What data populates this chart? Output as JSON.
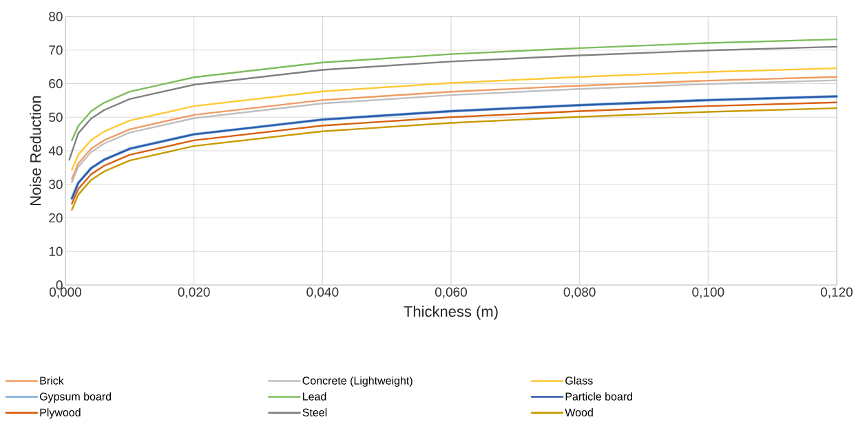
{
  "chart_data": {
    "type": "line",
    "xlabel": "Thickness (m)",
    "ylabel": "Noise Reduction",
    "x": [
      0.001,
      0.002,
      0.004,
      0.006,
      0.01,
      0.02,
      0.04,
      0.06,
      0.08,
      0.1,
      0.12
    ],
    "xlim": [
      0,
      0.12
    ],
    "ylim": [
      0,
      80
    ],
    "xticks": [
      {
        "value": 0,
        "label": "0,000"
      },
      {
        "value": 0.02,
        "label": "0,020"
      },
      {
        "value": 0.04,
        "label": "0,040"
      },
      {
        "value": 0.06,
        "label": "0,060"
      },
      {
        "value": 0.08,
        "label": "0,080"
      },
      {
        "value": 0.1,
        "label": "0,100"
      },
      {
        "value": 0.12,
        "label": "0,120"
      }
    ],
    "yticks": [
      0,
      10,
      20,
      30,
      40,
      50,
      60,
      70,
      80
    ],
    "grid": true,
    "legend": "bottom",
    "series": [
      {
        "name": "Brick",
        "color": "#f19a63",
        "values": [
          31.6,
          36.2,
          40.6,
          43.1,
          46.4,
          50.7,
          55.1,
          57.6,
          59.4,
          60.9,
          62.0
        ]
      },
      {
        "name": "Concrete (Lightweight)",
        "color": "#bfbfbf",
        "values": [
          30.6,
          35.2,
          39.6,
          42.1,
          45.4,
          49.7,
          54.1,
          56.6,
          58.4,
          59.9,
          61.0
        ]
      },
      {
        "name": "Glass",
        "color": "#ffc833",
        "values": [
          34.3,
          38.8,
          43.2,
          45.7,
          49.0,
          53.3,
          57.7,
          60.2,
          62.0,
          63.5,
          64.6
        ]
      },
      {
        "name": "Gypsum board",
        "color": "#7aaee0",
        "values": [
          25.8,
          30.4,
          34.8,
          37.3,
          40.6,
          44.9,
          49.3,
          51.8,
          53.6,
          55.1,
          56.2
        ]
      },
      {
        "name": "Lead",
        "color": "#7dbd5c",
        "values": [
          43.1,
          47.4,
          51.8,
          54.3,
          57.6,
          61.9,
          66.3,
          68.8,
          70.6,
          72.1,
          73.2
        ]
      },
      {
        "name": "Particle board",
        "color": "#2e5aa8",
        "values": [
          25.8,
          30.4,
          34.8,
          37.3,
          40.6,
          44.9,
          49.3,
          51.8,
          53.6,
          55.1,
          56.2
        ]
      },
      {
        "name": "Plywood",
        "color": "#d9600f",
        "values": [
          24.2,
          28.6,
          33.0,
          35.5,
          38.8,
          43.1,
          47.5,
          50.0,
          51.8,
          53.3,
          54.4
        ]
      },
      {
        "name": "Steel",
        "color": "#808080",
        "x": [
          0.0006,
          0.002,
          0.004,
          0.006,
          0.01,
          0.02,
          0.04,
          0.06,
          0.08,
          0.1,
          0.12
        ],
        "values": [
          37.3,
          45.2,
          49.6,
          52.1,
          55.4,
          59.7,
          64.1,
          66.6,
          68.4,
          69.9,
          71.0
        ]
      },
      {
        "name": "Wood",
        "color": "#c89a00",
        "values": [
          22.4,
          26.9,
          31.3,
          33.8,
          37.1,
          41.4,
          45.8,
          48.3,
          50.1,
          51.6,
          52.7
        ]
      }
    ]
  }
}
